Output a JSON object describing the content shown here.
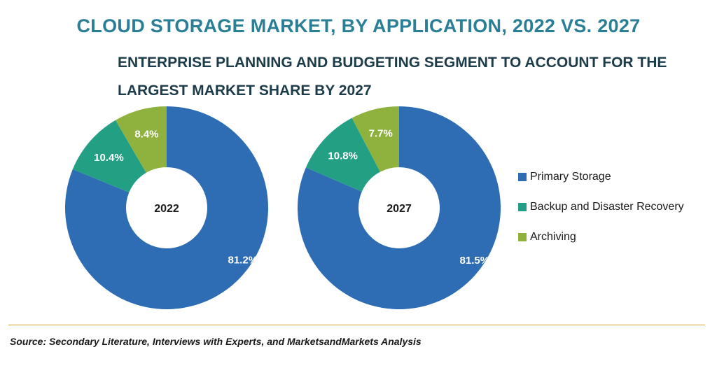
{
  "title": "CLOUD STORAGE MARKET, BY APPLICATION, 2022 VS. 2027",
  "subtitle": "ENTERPRISE PLANNING AND BUDGETING SEGMENT TO ACCOUNT FOR THE LARGEST MARKET SHARE BY 2027",
  "source": "Source: Secondary Literature, Interviews with Experts, and MarketsandMarkets Analysis",
  "colors": {
    "primary_storage": "#2e6db4",
    "backup": "#23a083",
    "archiving": "#8fb23e"
  },
  "legend": [
    {
      "label": "Primary Storage",
      "color": "#2e6db4"
    },
    {
      "label": "Backup and Disaster Recovery",
      "color": "#23a083"
    },
    {
      "label": "Archiving",
      "color": "#8fb23e"
    }
  ],
  "chart_data": [
    {
      "type": "pie",
      "center_label": "2022",
      "categories": [
        "Primary Storage",
        "Backup and Disaster Recovery",
        "Archiving"
      ],
      "values": [
        81.2,
        10.4,
        8.4
      ],
      "labels": [
        "81.2%",
        "10.4%",
        "8.4%"
      ]
    },
    {
      "type": "pie",
      "center_label": "2027",
      "categories": [
        "Primary Storage",
        "Backup and Disaster Recovery",
        "Archiving"
      ],
      "values": [
        81.5,
        10.8,
        7.7
      ],
      "labels": [
        "81.5%",
        "10.8%",
        "7.7%"
      ]
    }
  ]
}
